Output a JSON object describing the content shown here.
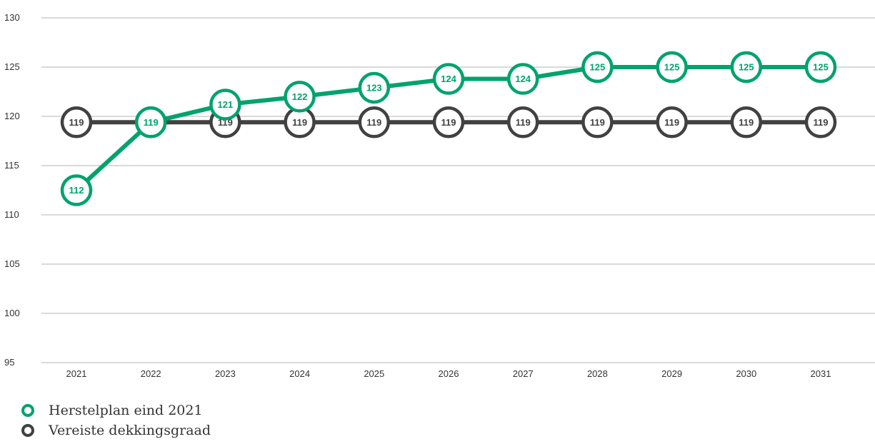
{
  "chart_data": {
    "type": "line",
    "title": "",
    "xlabel": "",
    "ylabel": "",
    "x": [
      "2021",
      "2022",
      "2023",
      "2024",
      "2025",
      "2026",
      "2027",
      "2028",
      "2029",
      "2030",
      "2031"
    ],
    "ylim": [
      95,
      130
    ],
    "yticks": [
      "130",
      "125",
      "120",
      "115",
      "110",
      "105",
      "100",
      "95"
    ],
    "grid": true,
    "legend_position": "bottom-left",
    "series": [
      {
        "name": "Vereiste dekkingsgraad",
        "color": "#414141",
        "values": [
          119.4,
          119.4,
          119.4,
          119.4,
          119.4,
          119.4,
          119.4,
          119.4,
          119.4,
          119.4,
          119.4
        ],
        "labels": [
          "119",
          "119",
          "119",
          "119",
          "119",
          "119",
          "119",
          "119",
          "119",
          "119",
          "119"
        ]
      },
      {
        "name": "Herstelplan eind 2021",
        "color": "#00a36c",
        "values": [
          112.5,
          119.4,
          121.2,
          122.0,
          122.9,
          123.8,
          123.8,
          125.0,
          125.0,
          125.0,
          125.0
        ],
        "labels": [
          "112",
          "119",
          "121",
          "122",
          "123",
          "124",
          "124",
          "125",
          "125",
          "125",
          "125"
        ]
      }
    ]
  }
}
